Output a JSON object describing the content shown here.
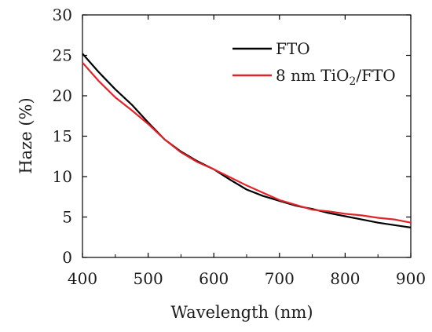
{
  "chart_data": {
    "type": "line",
    "title": "",
    "xlabel": "Wavelength (nm)",
    "ylabel": "Haze (%)",
    "xlim": [
      400,
      900
    ],
    "ylim": [
      0,
      30
    ],
    "xticks": [
      "400",
      "500",
      "600",
      "700",
      "800",
      "900"
    ],
    "yticks": [
      "0",
      "5",
      "10",
      "15",
      "20",
      "25",
      "30"
    ],
    "grid": false,
    "legend_position": "top-right",
    "series": [
      {
        "name": "FTO",
        "color": "#000000",
        "x": [
          400,
          425,
          450,
          475,
          500,
          525,
          550,
          575,
          600,
          625,
          650,
          675,
          700,
          725,
          750,
          775,
          800,
          825,
          850,
          875,
          900
        ],
        "y": [
          25.2,
          22.9,
          20.8,
          18.9,
          16.7,
          14.6,
          13.1,
          11.9,
          10.9,
          9.6,
          8.4,
          7.6,
          7.0,
          6.4,
          6.0,
          5.5,
          5.1,
          4.7,
          4.3,
          4.0,
          3.7
        ]
      },
      {
        "name": "8 nm TiO2/FTO",
        "name_parts": {
          "pre": "8 nm TiO",
          "sub": "2",
          "post": "/FTO"
        },
        "color": "#e0242a",
        "x": [
          400,
          425,
          450,
          475,
          500,
          525,
          550,
          575,
          600,
          625,
          650,
          675,
          700,
          725,
          750,
          775,
          800,
          825,
          850,
          875,
          900
        ],
        "y": [
          24.1,
          21.8,
          19.8,
          18.2,
          16.5,
          14.6,
          13.0,
          11.8,
          10.9,
          9.9,
          8.9,
          8.0,
          7.1,
          6.5,
          5.9,
          5.7,
          5.4,
          5.2,
          4.9,
          4.7,
          4.3
        ]
      }
    ]
  }
}
